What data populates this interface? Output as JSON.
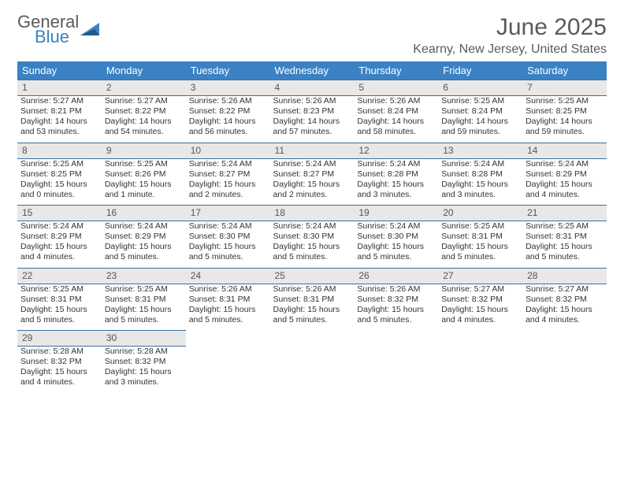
{
  "brand": {
    "word1": "General",
    "word2": "Blue"
  },
  "title": "June 2025",
  "location": "Kearny, New Jersey, United States",
  "colors": {
    "header_bg": "#3b82c4",
    "header_text": "#ffffff",
    "daynum_bg": "#e8e8e8",
    "daynum_border": "#3b6ea0",
    "body_text": "#333333",
    "title_text": "#5a5a5a"
  },
  "weekday_labels": [
    "Sunday",
    "Monday",
    "Tuesday",
    "Wednesday",
    "Thursday",
    "Friday",
    "Saturday"
  ],
  "weeks": [
    [
      {
        "n": "1",
        "sr": "Sunrise: 5:27 AM",
        "ss": "Sunset: 8:21 PM",
        "dl": "Daylight: 14 hours and 53 minutes."
      },
      {
        "n": "2",
        "sr": "Sunrise: 5:27 AM",
        "ss": "Sunset: 8:22 PM",
        "dl": "Daylight: 14 hours and 54 minutes."
      },
      {
        "n": "3",
        "sr": "Sunrise: 5:26 AM",
        "ss": "Sunset: 8:22 PM",
        "dl": "Daylight: 14 hours and 56 minutes."
      },
      {
        "n": "4",
        "sr": "Sunrise: 5:26 AM",
        "ss": "Sunset: 8:23 PM",
        "dl": "Daylight: 14 hours and 57 minutes."
      },
      {
        "n": "5",
        "sr": "Sunrise: 5:26 AM",
        "ss": "Sunset: 8:24 PM",
        "dl": "Daylight: 14 hours and 58 minutes."
      },
      {
        "n": "6",
        "sr": "Sunrise: 5:25 AM",
        "ss": "Sunset: 8:24 PM",
        "dl": "Daylight: 14 hours and 59 minutes."
      },
      {
        "n": "7",
        "sr": "Sunrise: 5:25 AM",
        "ss": "Sunset: 8:25 PM",
        "dl": "Daylight: 14 hours and 59 minutes."
      }
    ],
    [
      {
        "n": "8",
        "sr": "Sunrise: 5:25 AM",
        "ss": "Sunset: 8:25 PM",
        "dl": "Daylight: 15 hours and 0 minutes."
      },
      {
        "n": "9",
        "sr": "Sunrise: 5:25 AM",
        "ss": "Sunset: 8:26 PM",
        "dl": "Daylight: 15 hours and 1 minute."
      },
      {
        "n": "10",
        "sr": "Sunrise: 5:24 AM",
        "ss": "Sunset: 8:27 PM",
        "dl": "Daylight: 15 hours and 2 minutes."
      },
      {
        "n": "11",
        "sr": "Sunrise: 5:24 AM",
        "ss": "Sunset: 8:27 PM",
        "dl": "Daylight: 15 hours and 2 minutes."
      },
      {
        "n": "12",
        "sr": "Sunrise: 5:24 AM",
        "ss": "Sunset: 8:28 PM",
        "dl": "Daylight: 15 hours and 3 minutes."
      },
      {
        "n": "13",
        "sr": "Sunrise: 5:24 AM",
        "ss": "Sunset: 8:28 PM",
        "dl": "Daylight: 15 hours and 3 minutes."
      },
      {
        "n": "14",
        "sr": "Sunrise: 5:24 AM",
        "ss": "Sunset: 8:29 PM",
        "dl": "Daylight: 15 hours and 4 minutes."
      }
    ],
    [
      {
        "n": "15",
        "sr": "Sunrise: 5:24 AM",
        "ss": "Sunset: 8:29 PM",
        "dl": "Daylight: 15 hours and 4 minutes."
      },
      {
        "n": "16",
        "sr": "Sunrise: 5:24 AM",
        "ss": "Sunset: 8:29 PM",
        "dl": "Daylight: 15 hours and 5 minutes."
      },
      {
        "n": "17",
        "sr": "Sunrise: 5:24 AM",
        "ss": "Sunset: 8:30 PM",
        "dl": "Daylight: 15 hours and 5 minutes."
      },
      {
        "n": "18",
        "sr": "Sunrise: 5:24 AM",
        "ss": "Sunset: 8:30 PM",
        "dl": "Daylight: 15 hours and 5 minutes."
      },
      {
        "n": "19",
        "sr": "Sunrise: 5:24 AM",
        "ss": "Sunset: 8:30 PM",
        "dl": "Daylight: 15 hours and 5 minutes."
      },
      {
        "n": "20",
        "sr": "Sunrise: 5:25 AM",
        "ss": "Sunset: 8:31 PM",
        "dl": "Daylight: 15 hours and 5 minutes."
      },
      {
        "n": "21",
        "sr": "Sunrise: 5:25 AM",
        "ss": "Sunset: 8:31 PM",
        "dl": "Daylight: 15 hours and 5 minutes."
      }
    ],
    [
      {
        "n": "22",
        "sr": "Sunrise: 5:25 AM",
        "ss": "Sunset: 8:31 PM",
        "dl": "Daylight: 15 hours and 5 minutes."
      },
      {
        "n": "23",
        "sr": "Sunrise: 5:25 AM",
        "ss": "Sunset: 8:31 PM",
        "dl": "Daylight: 15 hours and 5 minutes."
      },
      {
        "n": "24",
        "sr": "Sunrise: 5:26 AM",
        "ss": "Sunset: 8:31 PM",
        "dl": "Daylight: 15 hours and 5 minutes."
      },
      {
        "n": "25",
        "sr": "Sunrise: 5:26 AM",
        "ss": "Sunset: 8:31 PM",
        "dl": "Daylight: 15 hours and 5 minutes."
      },
      {
        "n": "26",
        "sr": "Sunrise: 5:26 AM",
        "ss": "Sunset: 8:32 PM",
        "dl": "Daylight: 15 hours and 5 minutes."
      },
      {
        "n": "27",
        "sr": "Sunrise: 5:27 AM",
        "ss": "Sunset: 8:32 PM",
        "dl": "Daylight: 15 hours and 4 minutes."
      },
      {
        "n": "28",
        "sr": "Sunrise: 5:27 AM",
        "ss": "Sunset: 8:32 PM",
        "dl": "Daylight: 15 hours and 4 minutes."
      }
    ],
    [
      {
        "n": "29",
        "sr": "Sunrise: 5:28 AM",
        "ss": "Sunset: 8:32 PM",
        "dl": "Daylight: 15 hours and 4 minutes."
      },
      {
        "n": "30",
        "sr": "Sunrise: 5:28 AM",
        "ss": "Sunset: 8:32 PM",
        "dl": "Daylight: 15 hours and 3 minutes."
      },
      null,
      null,
      null,
      null,
      null
    ]
  ]
}
